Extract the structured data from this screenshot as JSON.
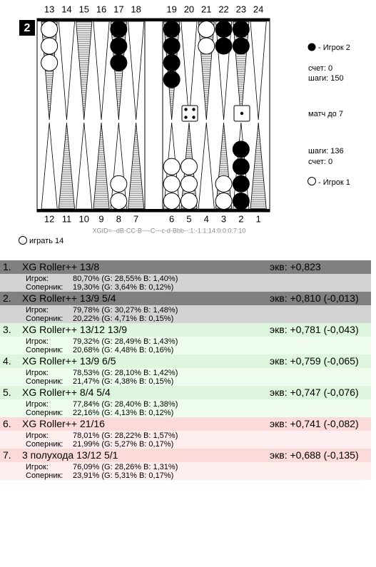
{
  "board": {
    "cube": "2",
    "top_points": [
      13,
      14,
      15,
      16,
      17,
      18,
      19,
      20,
      21,
      22,
      23,
      24
    ],
    "bottom_points": [
      12,
      11,
      10,
      9,
      8,
      7,
      6,
      5,
      4,
      3,
      2,
      1
    ],
    "checkers": [
      {
        "point": 13,
        "color": "white",
        "count": 3
      },
      {
        "point": 17,
        "color": "black",
        "count": 3
      },
      {
        "point": 19,
        "color": "black",
        "count": 4
      },
      {
        "point": 21,
        "color": "white",
        "count": 2
      },
      {
        "point": 22,
        "color": "black",
        "count": 2
      },
      {
        "point": 23,
        "color": "black",
        "count": 2
      },
      {
        "point": 8,
        "color": "white",
        "count": 2
      },
      {
        "point": 6,
        "color": "white",
        "count": 3
      },
      {
        "point": 5,
        "color": "white",
        "count": 3
      },
      {
        "point": 3,
        "color": "white",
        "count": 2
      },
      {
        "point": 2,
        "color": "black",
        "count": 4
      }
    ],
    "dice": [
      4,
      1
    ],
    "player2": {
      "name": "- Игрок 2",
      "score": "счет: 0",
      "pips": "шаги: 150"
    },
    "match": "матч до 7",
    "player1": {
      "pips": "шаги: 136",
      "score": "счет: 0",
      "name": "- Игрок 1"
    },
    "xgid": "XGID=--dB-CC-B----C---c-d-Bbb--:1:-1:1:14:0:0:0:7:10",
    "play": "играть 14"
  },
  "analysis": [
    {
      "num": "1.",
      "move": "XG Roller++ 13/8",
      "eq": "экв: +0,823",
      "player_label": "Игрок:",
      "player": "80,70% (G: 28,55% B: 1,40%)",
      "opponent_label": "Соперник:",
      "opponent": "19,30% (G: 3,64% B: 0,12%)"
    },
    {
      "num": "2.",
      "move": "XG Roller++ 13/9 5/4",
      "eq": "экв: +0,810 (-0,013)",
      "player_label": "Игрок:",
      "player": "79,78% (G: 30,27% B: 1,48%)",
      "opponent_label": "Соперник:",
      "opponent": "20,22% (G: 4,71% B: 0,15%)"
    },
    {
      "num": "3.",
      "move": "XG Roller++ 13/12 13/9",
      "eq": "экв: +0,781 (-0,043)",
      "player_label": "Игрок:",
      "player": "79,32% (G: 28,49% B: 1,43%)",
      "opponent_label": "Соперник:",
      "opponent": "20,68% (G: 4,48% B: 0,16%)"
    },
    {
      "num": "4.",
      "move": "XG Roller++ 13/9 6/5",
      "eq": "экв: +0,759 (-0,065)",
      "player_label": "Игрок:",
      "player": "78,53% (G: 28,10% B: 1,42%)",
      "opponent_label": "Соперник:",
      "opponent": "21,47% (G: 4,38% B: 0,15%)"
    },
    {
      "num": "5.",
      "move": "XG Roller++ 8/4 5/4",
      "eq": "экв: +0,747 (-0,076)",
      "player_label": "Игрок:",
      "player": "77,84% (G: 28,40% B: 1,38%)",
      "opponent_label": "Соперник:",
      "opponent": "22,16% (G: 4,13% B: 0,12%)"
    },
    {
      "num": "6.",
      "move": "XG Roller++ 21/16",
      "eq": "экв: +0,741 (-0,082)",
      "player_label": "Игрок:",
      "player": "78,01% (G: 28,22% B: 1,57%)",
      "opponent_label": "Соперник:",
      "opponent": "21,99% (G: 5,27% B: 0,17%)"
    },
    {
      "num": "7.",
      "move": "3 полухода   13/12 5/1",
      "eq": "экв: +0,688 (-0,135)",
      "player_label": "Игрок:",
      "player": "76,09% (G: 28,26% B: 1,31%)",
      "opponent_label": "Соперник:",
      "opponent": "23,91% (G: 5,31% B: 0,17%)"
    }
  ]
}
